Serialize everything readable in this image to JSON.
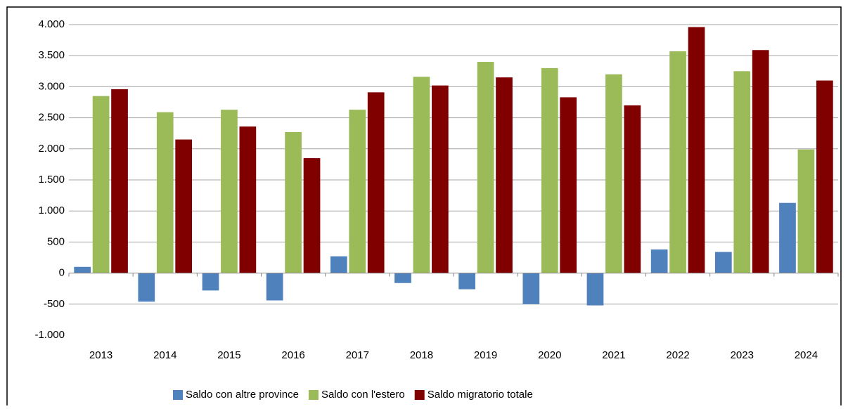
{
  "chart_data": {
    "type": "bar",
    "categories": [
      "2013",
      "2014",
      "2015",
      "2016",
      "2017",
      "2018",
      "2019",
      "2020",
      "2021",
      "2022",
      "2023",
      "2024"
    ],
    "series": [
      {
        "name": "Saldo con altre province",
        "color": "#4f81bd",
        "values": [
          100,
          -460,
          -280,
          -440,
          270,
          -160,
          -260,
          -500,
          -520,
          380,
          340,
          1130
        ]
      },
      {
        "name": "Saldo con l'estero",
        "color": "#9bbb59",
        "values": [
          2850,
          2590,
          2630,
          2270,
          2630,
          3160,
          3400,
          3300,
          3200,
          3570,
          3250,
          1990
        ]
      },
      {
        "name": "Saldo migratorio totale",
        "color": "#800000",
        "values": [
          2960,
          2150,
          2360,
          1850,
          2910,
          3020,
          3150,
          2830,
          2700,
          3960,
          3590,
          3100
        ]
      }
    ],
    "ylim": [
      -1000,
      4000
    ],
    "yticks": [
      {
        "value": -1000,
        "label": "-1.000"
      },
      -500,
      0,
      500,
      {
        "value": 1000,
        "label": "1.000"
      },
      {
        "value": 1500,
        "label": "1.500"
      },
      {
        "value": 2000,
        "label": "2.000"
      },
      {
        "value": 2500,
        "label": "2.500"
      },
      {
        "value": 3000,
        "label": "3.000"
      },
      {
        "value": 3500,
        "label": "3.500"
      },
      {
        "value": 4000,
        "label": "4.000"
      }
    ],
    "grid": true,
    "legend": "bottom"
  }
}
